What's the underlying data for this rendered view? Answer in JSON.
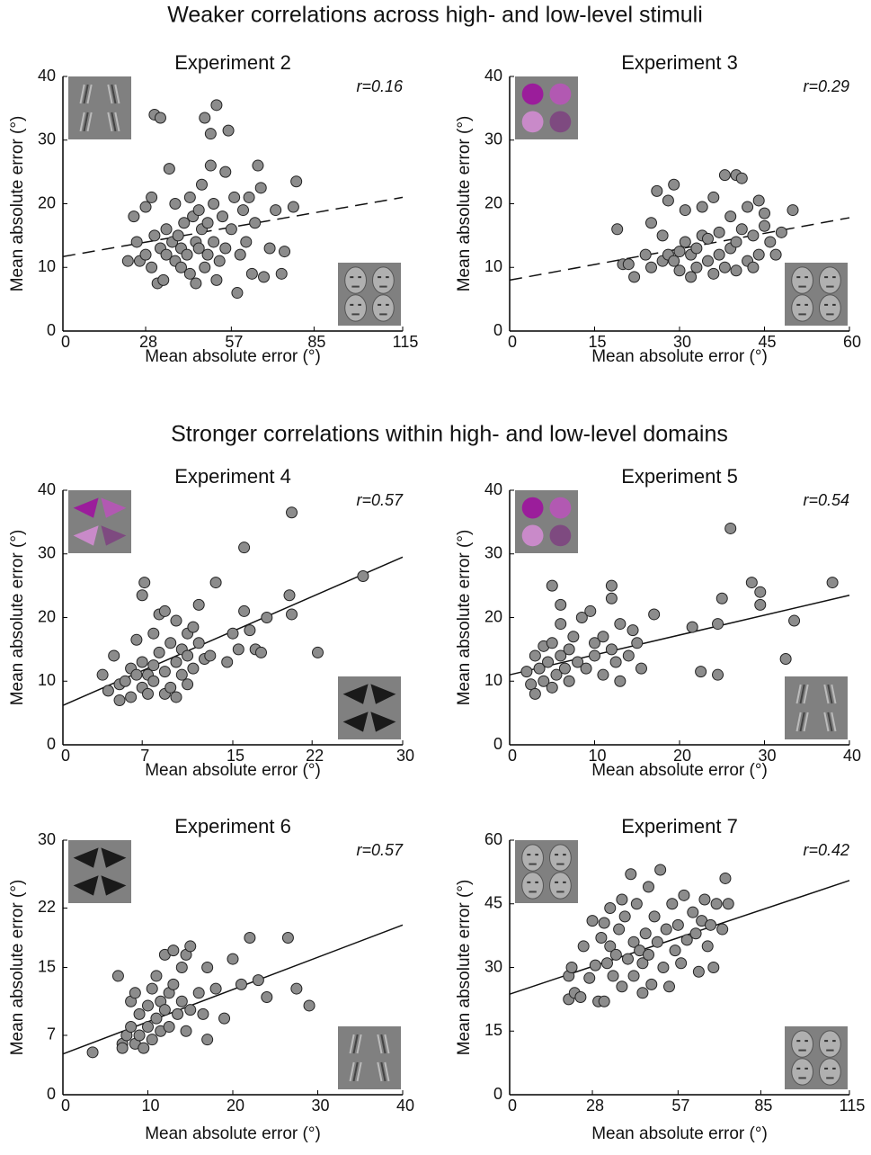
{
  "section_titles": [
    "Weaker correlations across high- and low-level stimuli",
    "Stronger correlations within high- and low-level domains"
  ],
  "chart_data": [
    {
      "type": "scatter",
      "title": "Experiment 2",
      "annotation": "r=0.16",
      "x_label": "Mean absolute error (°)",
      "y_label": "Mean absolute error (°)",
      "color": "#8c8c8c",
      "xlim": [
        0,
        115
      ],
      "xticks": [
        0,
        28,
        57,
        85,
        115
      ],
      "ylim": [
        0,
        40
      ],
      "yticks": [
        0,
        10,
        20,
        30,
        40
      ],
      "x": [
        22,
        24,
        25,
        26,
        28,
        28,
        30,
        30,
        31,
        31,
        32,
        33,
        33,
        34,
        35,
        35,
        36,
        37,
        38,
        38,
        39,
        40,
        40,
        41,
        42,
        43,
        43,
        44,
        45,
        45,
        46,
        46,
        47,
        47,
        48,
        48,
        49,
        49,
        50,
        50,
        51,
        51,
        52,
        52,
        53,
        54,
        55,
        55,
        56,
        57,
        58,
        59,
        60,
        61,
        62,
        63,
        64,
        65,
        66,
        67,
        68,
        70,
        72,
        74,
        75,
        78,
        79
      ],
      "values": [
        11,
        18,
        14,
        11,
        12,
        19.5,
        21,
        10,
        15,
        34,
        7.5,
        33.5,
        13,
        8,
        16,
        12,
        25.5,
        14,
        11,
        20,
        15,
        13,
        10,
        17,
        12,
        9,
        21,
        18,
        14,
        7.5,
        13,
        19,
        16,
        23,
        10,
        33.5,
        17,
        12,
        26,
        31,
        20,
        14,
        8,
        35.5,
        11,
        18,
        25,
        13,
        31.5,
        16,
        21,
        6,
        12,
        19,
        14,
        21,
        9,
        17,
        26,
        22.5,
        8.5,
        13,
        19,
        9,
        12.5,
        19.5,
        23.5
      ],
      "fit_line": {
        "x": [
          0,
          115
        ],
        "values": [
          11.7,
          21
        ],
        "style": "dashed"
      }
    },
    {
      "type": "scatter",
      "title": "Experiment 3",
      "annotation": "r=0.29",
      "x_label": "Mean absolute error (°)",
      "y_label": "Mean absolute error (°)",
      "color": "#8c8c8c",
      "xlim": [
        0,
        60
      ],
      "xticks": [
        0,
        15,
        30,
        45,
        60
      ],
      "ylim": [
        0,
        40
      ],
      "yticks": [
        0,
        10,
        20,
        30,
        40
      ],
      "x": [
        19,
        20,
        21,
        22,
        24,
        25,
        25,
        26,
        27,
        27,
        28,
        28,
        29,
        29,
        30,
        30,
        31,
        31,
        32,
        32,
        33,
        33,
        34,
        34,
        35,
        35,
        36,
        36,
        37,
        37,
        38,
        38,
        39,
        39,
        40,
        40,
        40,
        41,
        41,
        42,
        42,
        43,
        43,
        44,
        44,
        45,
        45,
        46,
        47,
        48,
        50
      ],
      "values": [
        16,
        10.5,
        10.5,
        8.5,
        12,
        17,
        10,
        22,
        11,
        15,
        20.5,
        12,
        11,
        23,
        12.5,
        9.5,
        14,
        19,
        12,
        8.5,
        13,
        10,
        15,
        19.5,
        11,
        14.5,
        21,
        9,
        12,
        15.5,
        10,
        24.5,
        13,
        18,
        24.5,
        14,
        9.5,
        24,
        16,
        11,
        19.5,
        15,
        10,
        20.5,
        12,
        16.5,
        18.5,
        14,
        12,
        15.5,
        19
      ],
      "fit_line": {
        "x": [
          0,
          60
        ],
        "values": [
          8,
          17.8
        ],
        "style": "dashed"
      }
    },
    {
      "type": "scatter",
      "title": "Experiment 4",
      "annotation": "r=0.57",
      "x_label": "Mean absolute error (°)",
      "y_label": "Mean absolute error (°)",
      "color": "#8c8c8c",
      "xlim": [
        0,
        30
      ],
      "xticks": [
        0,
        7,
        15,
        22,
        30
      ],
      "ylim": [
        0,
        40
      ],
      "yticks": [
        0,
        10,
        20,
        30,
        40
      ],
      "x": [
        3.5,
        4,
        4.5,
        5,
        5,
        5.5,
        6,
        6,
        6.5,
        6.5,
        7,
        7,
        7,
        7.2,
        7.5,
        7.5,
        8,
        8,
        8,
        8.5,
        8.5,
        9,
        9,
        9,
        9.5,
        9.5,
        10,
        10,
        10,
        10.5,
        10.5,
        11,
        11,
        11,
        11.5,
        11.5,
        12,
        12,
        12.5,
        13,
        13.5,
        14.5,
        15,
        15.5,
        16,
        16,
        16.5,
        17,
        17.5,
        18,
        20,
        20.2,
        20.2,
        22.5,
        26.5
      ],
      "values": [
        11,
        8.5,
        14,
        7,
        9.5,
        10,
        12,
        7.5,
        11,
        16.5,
        9,
        13,
        23.5,
        25.5,
        11,
        8,
        12.5,
        10,
        17.5,
        20.5,
        14.5,
        8,
        11.5,
        21,
        9,
        16,
        13,
        19.5,
        7.5,
        15,
        11,
        17.5,
        9.5,
        14,
        12,
        18.5,
        16,
        22,
        13.5,
        14,
        25.5,
        13,
        17.5,
        15,
        21,
        31,
        18,
        15,
        14.5,
        20,
        23.5,
        20.5,
        36.5,
        14.5,
        26.5
      ],
      "fit_line": {
        "x": [
          0,
          30
        ],
        "values": [
          6.2,
          29.5
        ],
        "style": "solid"
      }
    },
    {
      "type": "scatter",
      "title": "Experiment 5",
      "annotation": "r=0.54",
      "x_label": "Mean absolute error (°)",
      "y_label": "Mean absolute error (°)",
      "color": "#8c8c8c",
      "xlim": [
        0,
        40
      ],
      "xticks": [
        0,
        10,
        20,
        30,
        40
      ],
      "ylim": [
        0,
        40
      ],
      "yticks": [
        0,
        10,
        20,
        30,
        40
      ],
      "x": [
        2,
        2.5,
        3,
        3,
        3.5,
        4,
        4,
        4.5,
        5,
        5,
        5,
        5.5,
        6,
        6,
        6,
        6.5,
        7,
        7,
        7.5,
        8,
        8.5,
        9,
        9.5,
        10,
        10,
        11,
        11,
        12,
        12,
        12,
        12.5,
        13,
        13,
        14,
        14.5,
        15,
        15.5,
        17,
        21.5,
        22.5,
        24.5,
        24.5,
        25,
        26,
        28.5,
        29.5,
        29.5,
        32.5,
        33.5,
        38
      ],
      "values": [
        11.5,
        9.5,
        14,
        8,
        12,
        15.5,
        10,
        13,
        16,
        25,
        9,
        11,
        14,
        19,
        22,
        12,
        15,
        10,
        17,
        13,
        20,
        12,
        21,
        16,
        14,
        11,
        17,
        23,
        25,
        15,
        13,
        10,
        19,
        14,
        18,
        16,
        12,
        20.5,
        18.5,
        11.5,
        11,
        19,
        23,
        34,
        25.5,
        24,
        22,
        13.5,
        19.5,
        25.5
      ],
      "fit_line": {
        "x": [
          0,
          40
        ],
        "values": [
          11,
          23.5
        ],
        "style": "solid"
      }
    },
    {
      "type": "scatter",
      "title": "Experiment 6",
      "annotation": "r=0.57",
      "x_label": "Mean absolute error (°)",
      "y_label": "Mean absolute error (°)",
      "color": "#8c8c8c",
      "xlim": [
        0,
        40
      ],
      "xticks": [
        0,
        10,
        20,
        30,
        40
      ],
      "ylim": [
        0,
        30
      ],
      "yticks": [
        0,
        7,
        15,
        22,
        30
      ],
      "x": [
        3.5,
        6.5,
        7,
        7,
        7.5,
        8,
        8,
        8.5,
        8.5,
        9,
        9,
        9.5,
        10,
        10,
        10.5,
        10.5,
        11,
        11,
        11.5,
        11.5,
        12,
        12,
        12.5,
        12.5,
        13,
        13,
        13.5,
        14,
        14,
        14.5,
        14.5,
        15,
        15,
        16,
        16.5,
        17,
        17,
        18,
        19,
        20,
        21,
        22,
        23,
        24,
        26.5,
        27.5,
        29
      ],
      "values": [
        5,
        14,
        6,
        5.5,
        7,
        8,
        11,
        6,
        12,
        9.5,
        7,
        5.5,
        8,
        10.5,
        6.5,
        12.5,
        9,
        14,
        11,
        7.5,
        16.5,
        10,
        8,
        12,
        13,
        17,
        9.5,
        11,
        15,
        7.5,
        16.5,
        17.5,
        10,
        12,
        9.5,
        6.5,
        15,
        12.5,
        9,
        16,
        13,
        18.5,
        13.5,
        11.5,
        18.5,
        12.5,
        10.5
      ],
      "fit_line": {
        "x": [
          0,
          40
        ],
        "values": [
          4.8,
          20
        ],
        "style": "solid"
      }
    },
    {
      "type": "scatter",
      "title": "Experiment 7",
      "annotation": "r=0.42",
      "x_label": "Mean absolute error (°)",
      "y_label": "Mean absolute error (°)",
      "color": "#8c8c8c",
      "xlim": [
        0,
        115
      ],
      "xticks": [
        0,
        28,
        57,
        85,
        115
      ],
      "ylim": [
        0,
        60
      ],
      "yticks": [
        0,
        15,
        30,
        45,
        60
      ],
      "x": [
        20,
        20,
        21,
        22,
        24,
        25,
        27,
        28,
        29,
        30,
        31,
        32,
        32,
        33,
        34,
        34,
        35,
        36,
        37,
        38,
        38,
        39,
        40,
        41,
        42,
        42,
        43,
        44,
        45,
        45,
        46,
        47,
        47,
        48,
        49,
        50,
        51,
        52,
        53,
        54,
        55,
        56,
        57,
        58,
        59,
        60,
        62,
        63,
        64,
        65,
        66,
        67,
        68,
        69,
        70,
        72,
        73,
        74
      ],
      "values": [
        22.5,
        28,
        30,
        24,
        23,
        35,
        27.5,
        41,
        30.5,
        22,
        37,
        40.5,
        22,
        31,
        35,
        44,
        28,
        33,
        39,
        46,
        25.5,
        42,
        32,
        52,
        36,
        28,
        45,
        34,
        31,
        24,
        38,
        49,
        33,
        26,
        42,
        36,
        53,
        30,
        39,
        25.5,
        45,
        34,
        40,
        31,
        47,
        36.5,
        43,
        38,
        29,
        41,
        46,
        35,
        40,
        30,
        45,
        39,
        51,
        45
      ],
      "fit_line": {
        "x": [
          0,
          115
        ],
        "values": [
          23.7,
          50.5
        ],
        "style": "solid"
      }
    }
  ]
}
